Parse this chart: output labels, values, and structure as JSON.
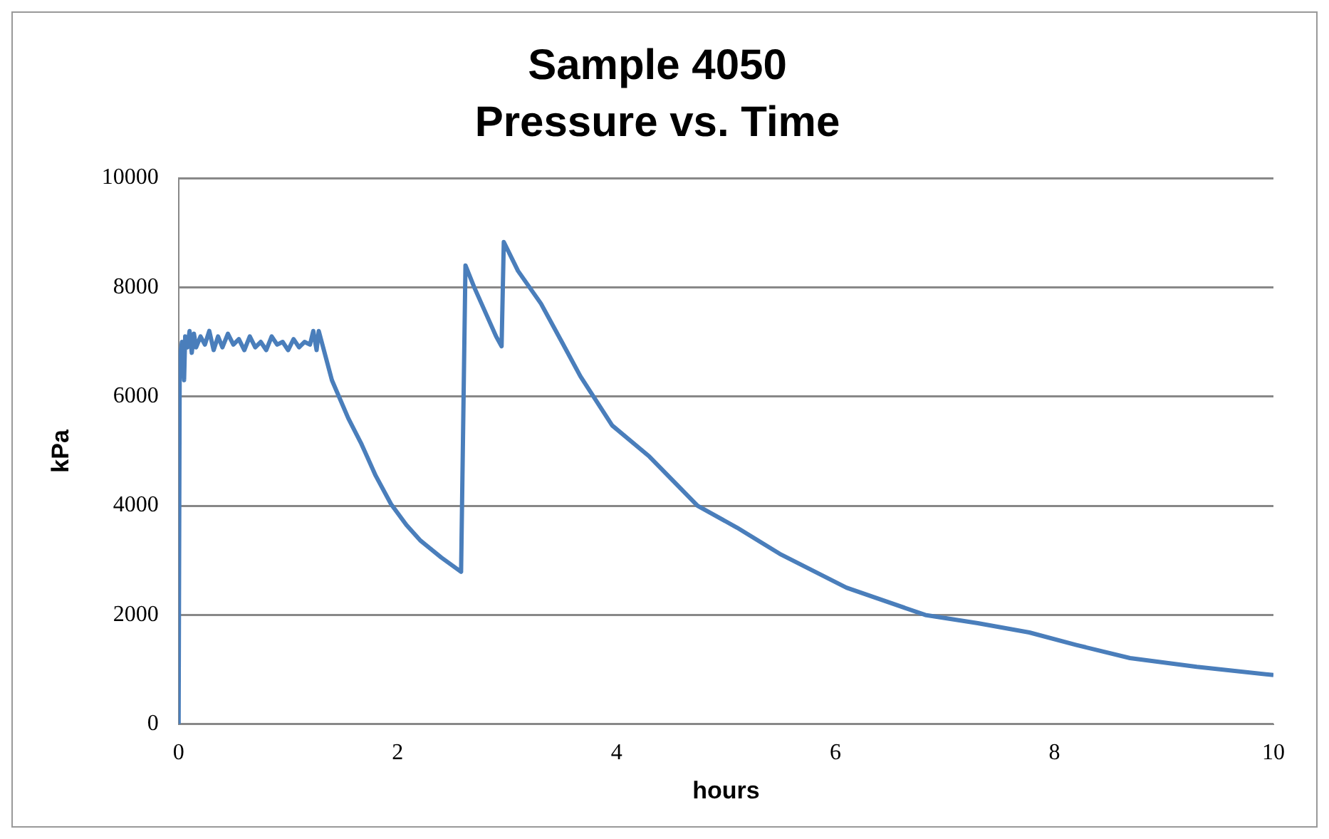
{
  "chart_data": {
    "type": "line",
    "title": "Sample 4050",
    "subtitle": "Pressure vs. Time",
    "xlabel": "hours",
    "ylabel": "kPa",
    "xlim": [
      0,
      10
    ],
    "xticks": [
      0,
      2,
      4,
      6,
      8,
      10
    ],
    "ylim": [
      0,
      10000
    ],
    "yticks": [
      0,
      2000,
      4000,
      6000,
      8000,
      10000
    ],
    "grid": "y",
    "legend": false,
    "marker": "none",
    "line_style": "solid",
    "series": [
      {
        "color": "#4a7ebb",
        "x": [
          0,
          0.01,
          0.03,
          0.05,
          0.06,
          0.08,
          0.1,
          0.12,
          0.14,
          0.16,
          0.2,
          0.24,
          0.28,
          0.32,
          0.36,
          0.4,
          0.45,
          0.5,
          0.55,
          0.6,
          0.65,
          0.7,
          0.75,
          0.8,
          0.85,
          0.9,
          0.95,
          1.0,
          1.05,
          1.1,
          1.15,
          1.2,
          1.23,
          1.26,
          1.28,
          1.4,
          1.55,
          1.67,
          1.8,
          1.94,
          2.08,
          2.21,
          2.4,
          2.58,
          2.6,
          2.62,
          2.7,
          2.8,
          2.9,
          2.95,
          2.97,
          3.1,
          3.31,
          3.5,
          3.67,
          3.96,
          4.3,
          4.74,
          5.1,
          5.49,
          6.1,
          6.82,
          7.3,
          7.77,
          8.2,
          8.69,
          9.3,
          10
        ],
        "values": [
          0,
          6700,
          7000,
          6300,
          7100,
          6900,
          7200,
          6800,
          7150,
          6900,
          7100,
          6950,
          7200,
          6850,
          7100,
          6900,
          7150,
          6950,
          7050,
          6850,
          7100,
          6900,
          7000,
          6850,
          7100,
          6950,
          7000,
          6850,
          7050,
          6900,
          7000,
          6950,
          7200,
          6850,
          7200,
          6300,
          5600,
          5130,
          4550,
          4030,
          3650,
          3360,
          3050,
          2790,
          5600,
          8400,
          8000,
          7550,
          7100,
          6920,
          8830,
          8300,
          7700,
          7000,
          6370,
          5470,
          4900,
          4000,
          3600,
          3120,
          2500,
          2000,
          1850,
          1680,
          1450,
          1210,
          1050,
          900
        ]
      }
    ]
  }
}
